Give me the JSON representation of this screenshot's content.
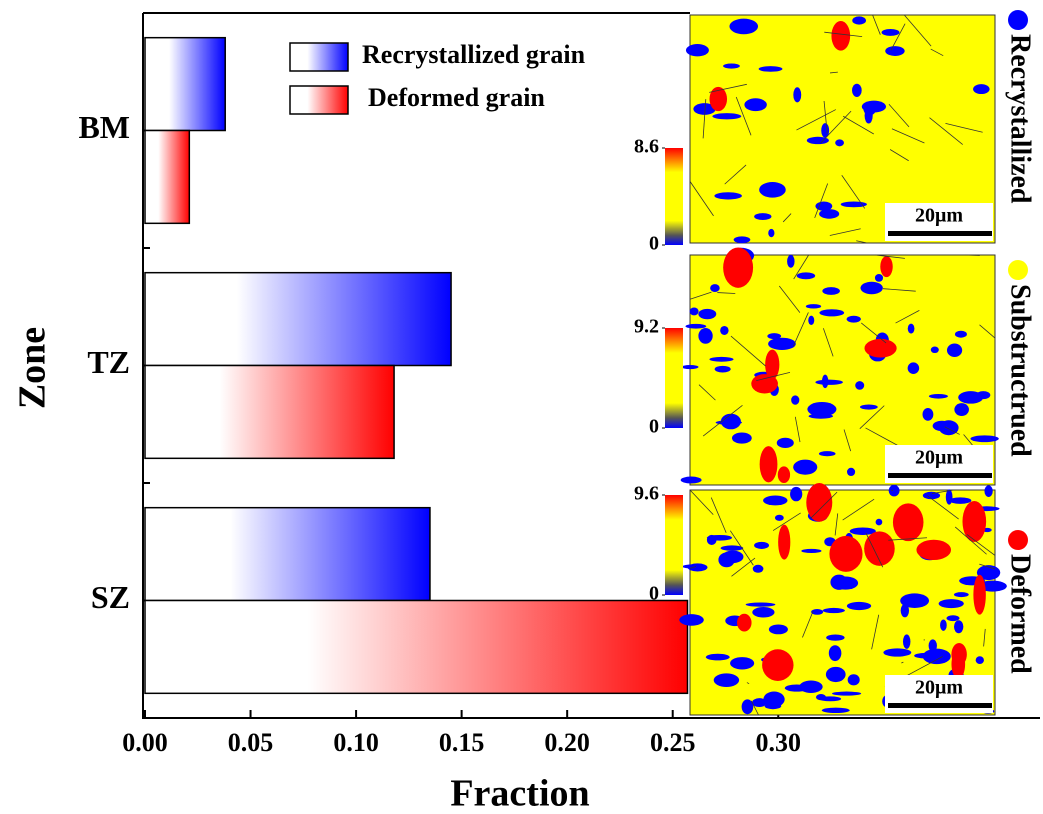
{
  "chart_data": {
    "type": "barh",
    "xlabel": "Fraction",
    "ylabel": "Zone",
    "categories": [
      "BM",
      "TZ",
      "SZ"
    ],
    "series": [
      {
        "name": "Recrystallized grain",
        "color": "#0000ff",
        "values": [
          0.038,
          0.145,
          0.135
        ]
      },
      {
        "name": "Deformed grain",
        "color": "#ff0000",
        "values": [
          0.021,
          0.118,
          0.257
        ]
      }
    ],
    "xlim": [
      0,
      0.424
    ],
    "xticks": [
      {
        "value": 0,
        "label": "0.00"
      },
      0.05,
      {
        "value": 0.1,
        "label": "0.10"
      },
      0.15,
      {
        "value": 0.2,
        "label": "0.20"
      },
      0.25,
      {
        "value": 0.3,
        "label": "0.30"
      }
    ],
    "insets": [
      {
        "colorbar_ticks": [
          0,
          8.6
        ],
        "scale_bar": "20μm"
      },
      {
        "colorbar_ticks": [
          0,
          9.2
        ],
        "scale_bar": "20μm"
      },
      {
        "colorbar_ticks": [
          0,
          9.6
        ],
        "scale_bar": "20μm"
      }
    ],
    "map_legend": [
      {
        "name": "Recrystallized",
        "color": "#0000ff"
      },
      {
        "name": "Substructrued",
        "color": "#ffff00"
      },
      {
        "name": "Deformed",
        "color": "#ff0000"
      }
    ]
  }
}
